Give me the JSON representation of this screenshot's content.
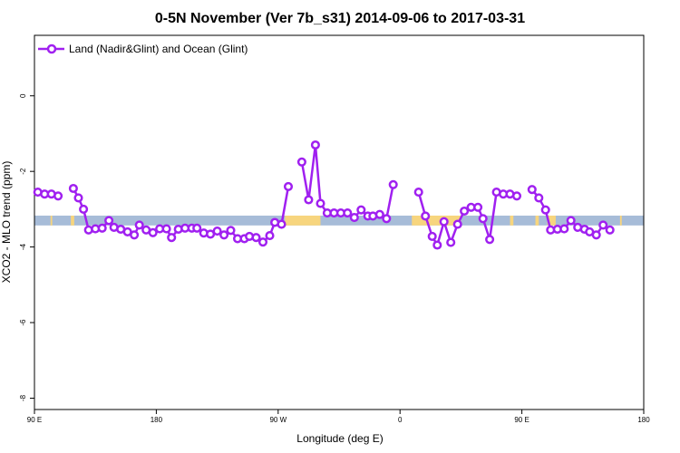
{
  "chart_data": {
    "type": "line",
    "title": "0-5N November (Ver 7b_s31)   2014-09-06 to 2017-03-31",
    "xlabel": "Longitude (deg E)",
    "ylabel": "XCO2 - MLO trend (ppm)",
    "xlim": [
      90,
      450
    ],
    "ylim": [
      -8.3,
      1.6
    ],
    "x_ticks": [
      {
        "value": 90,
        "label": "90 E"
      },
      {
        "value": 162,
        "label": "180"
      },
      {
        "value": 234,
        "label": "90 W"
      },
      {
        "value": 306,
        "label": "0"
      },
      {
        "value": 378,
        "label": "90 E"
      },
      {
        "value": 450,
        "label": "180"
      }
    ],
    "y_ticks": [
      {
        "value": 0,
        "label": "0"
      },
      {
        "value": -2,
        "label": "-2"
      },
      {
        "value": -4,
        "label": "-4"
      },
      {
        "value": -6,
        "label": "-6"
      },
      {
        "value": -8,
        "label": "-8"
      }
    ],
    "legend": {
      "position": "top-left",
      "entries": [
        "Land (Nadir&Glint) and Ocean (Glint)"
      ]
    },
    "grid": false,
    "line_color": "#a020f0",
    "surface_band": {
      "y_range": [
        -3.43,
        -3.17
      ],
      "ocean_color": "#a7bcd8",
      "land_color": "#f7d57e",
      "land_segments": [
        [
          99.5,
          100.5
        ],
        [
          111.5,
          113.5
        ],
        [
          238,
          259
        ],
        [
          313,
          342
        ],
        [
          371,
          373
        ],
        [
          386,
          388
        ],
        [
          393,
          398
        ],
        [
          436,
          437
        ]
      ]
    },
    "series": [
      {
        "name": "Land (Nadir&Glint) and Ocean (Glint)",
        "segments": [
          [
            [
              92,
              -2.55
            ],
            [
              96,
              -2.6
            ],
            [
              100,
              -2.6
            ],
            [
              104,
              -2.65
            ]
          ],
          [
            [
              113,
              -2.45
            ],
            [
              116,
              -2.7
            ],
            [
              119,
              -3.0
            ],
            [
              122,
              -3.55
            ],
            [
              126,
              -3.52
            ],
            [
              130,
              -3.5
            ],
            [
              134,
              -3.3
            ],
            [
              137,
              -3.48
            ],
            [
              141,
              -3.53
            ],
            [
              145,
              -3.6
            ],
            [
              149,
              -3.68
            ],
            [
              152,
              -3.42
            ],
            [
              156,
              -3.55
            ],
            [
              160,
              -3.62
            ],
            [
              164,
              -3.52
            ],
            [
              168,
              -3.52
            ],
            [
              171,
              -3.75
            ],
            [
              175,
              -3.53
            ],
            [
              179,
              -3.5
            ],
            [
              183,
              -3.5
            ],
            [
              186,
              -3.5
            ],
            [
              190,
              -3.63
            ],
            [
              194,
              -3.66
            ],
            [
              198,
              -3.58
            ],
            [
              202,
              -3.68
            ],
            [
              206,
              -3.56
            ],
            [
              210,
              -3.78
            ],
            [
              214,
              -3.78
            ],
            [
              217,
              -3.72
            ],
            [
              221,
              -3.75
            ],
            [
              225,
              -3.87
            ],
            [
              229,
              -3.7
            ],
            [
              232,
              -3.35
            ],
            [
              236,
              -3.4
            ],
            [
              240,
              -2.4
            ]
          ],
          [
            [
              248,
              -1.75
            ],
            [
              252,
              -2.75
            ],
            [
              256,
              -1.3
            ],
            [
              259,
              -2.85
            ],
            [
              263,
              -3.1
            ],
            [
              267,
              -3.1
            ],
            [
              271,
              -3.1
            ],
            [
              275,
              -3.1
            ],
            [
              279,
              -3.22
            ],
            [
              283,
              -3.02
            ],
            [
              287,
              -3.18
            ],
            [
              290,
              -3.18
            ],
            [
              294,
              -3.14
            ],
            [
              298,
              -3.25
            ],
            [
              302,
              -2.35
            ]
          ],
          [
            [
              317,
              -2.55
            ],
            [
              321,
              -3.18
            ],
            [
              325,
              -3.72
            ],
            [
              328,
              -3.95
            ],
            [
              332,
              -3.33
            ],
            [
              336,
              -3.88
            ],
            [
              340,
              -3.4
            ],
            [
              344,
              -3.05
            ],
            [
              348,
              -2.95
            ],
            [
              352,
              -2.95
            ],
            [
              355,
              -3.25
            ],
            [
              359,
              -3.8
            ],
            [
              363,
              -2.55
            ],
            [
              367,
              -2.6
            ],
            [
              371,
              -2.6
            ],
            [
              375,
              -2.65
            ]
          ],
          [
            [
              384,
              -2.48
            ],
            [
              388,
              -2.7
            ],
            [
              392,
              -3.02
            ],
            [
              395,
              -3.55
            ],
            [
              399,
              -3.53
            ],
            [
              403,
              -3.52
            ],
            [
              407,
              -3.3
            ],
            [
              411,
              -3.48
            ],
            [
              415,
              -3.53
            ],
            [
              418,
              -3.6
            ],
            [
              422,
              -3.68
            ],
            [
              426,
              -3.42
            ],
            [
              430,
              -3.55
            ]
          ]
        ]
      }
    ]
  }
}
